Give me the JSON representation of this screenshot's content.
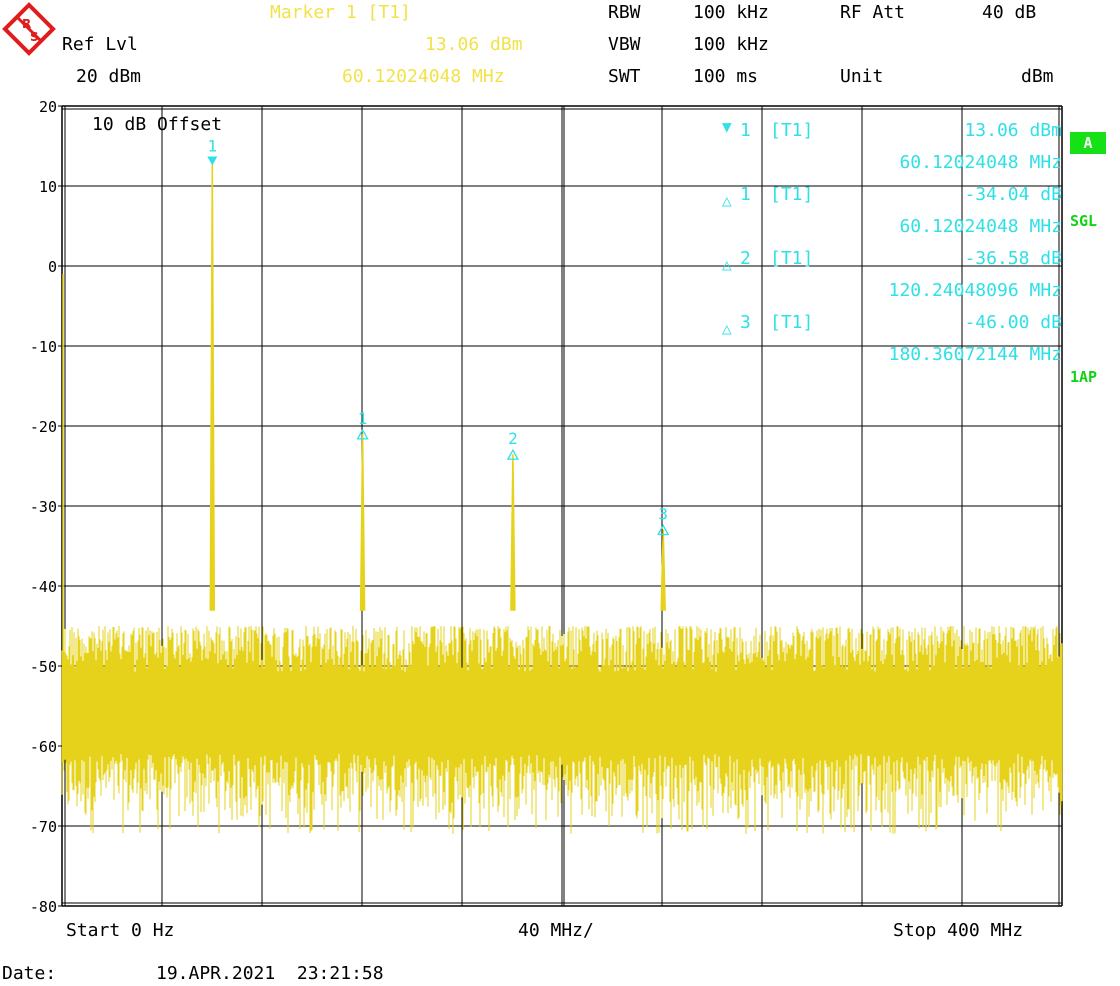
{
  "header": {
    "marker_title": "Marker 1 [T1]",
    "ref_lvl_label": "Ref Lvl",
    "ref_lvl_value": "20 dBm",
    "marker_level": "13.06 dBm",
    "marker_freq": "60.12024048 MHz",
    "rbw_label": "RBW",
    "rbw_value": "100 kHz",
    "vbw_label": "VBW",
    "vbw_value": "100 kHz",
    "swt_label": "SWT",
    "swt_value": "100 ms",
    "rfatt_label": "RF Att",
    "rfatt_value": "40 dB",
    "unit_label": "Unit",
    "unit_value": "dBm"
  },
  "offset_label": "10 dB Offset",
  "side_labels": {
    "trace": "A",
    "mode": "SGL",
    "detector": "1AP"
  },
  "marker_table": [
    {
      "symbol": "▼",
      "index": "1",
      "trace": "[T1]",
      "value": "13.06 dBm",
      "freq": "60.12024048 MHz"
    },
    {
      "symbol": "△",
      "index": "1",
      "trace": "[T1]",
      "value": "-34.04 dB",
      "freq": "60.12024048 MHz"
    },
    {
      "symbol": "△",
      "index": "2",
      "trace": "[T1]",
      "value": "-36.58 dB",
      "freq": "120.24048096 MHz"
    },
    {
      "symbol": "△",
      "index": "3",
      "trace": "[T1]",
      "value": "-46.00 dB",
      "freq": "180.36072144 MHz"
    }
  ],
  "footer": {
    "start": "Start 0 Hz",
    "div": "40 MHz/",
    "stop": "Stop 400 MHz",
    "date_label": "Date:",
    "date_value": "19.APR.2021  23:21:58"
  },
  "colors": {
    "trace": "#e6d21a",
    "marker": "#2fe0e6",
    "grid": "#000000"
  },
  "chart_data": {
    "type": "line",
    "title": "",
    "xlabel": "",
    "ylabel": "",
    "xlim": [
      0,
      400
    ],
    "ylim": [
      -80,
      20
    ],
    "x_unit": "MHz",
    "y_unit": "dBm",
    "y_ticks": [
      20,
      10,
      0,
      -10,
      -20,
      -30,
      -40,
      -50,
      -60,
      -70,
      -80
    ],
    "grid": true,
    "noise_floor": {
      "upper": -45,
      "lower": -70
    },
    "peaks": [
      {
        "x": 60.12,
        "y": 13.06
      },
      {
        "x": 120.24,
        "y": -20.98
      },
      {
        "x": 180.36,
        "y": -23.52
      },
      {
        "x": 240.48,
        "y": -32.94
      }
    ],
    "markers": [
      {
        "label": "1",
        "type": "normal",
        "x": 60.12,
        "y": 13.06
      },
      {
        "label": "1",
        "type": "delta",
        "x": 120.24,
        "y": -20.98
      },
      {
        "label": "2",
        "type": "delta",
        "x": 180.36,
        "y": -23.52
      },
      {
        "label": "3",
        "type": "delta",
        "x": 240.48,
        "y": -32.94
      }
    ]
  }
}
